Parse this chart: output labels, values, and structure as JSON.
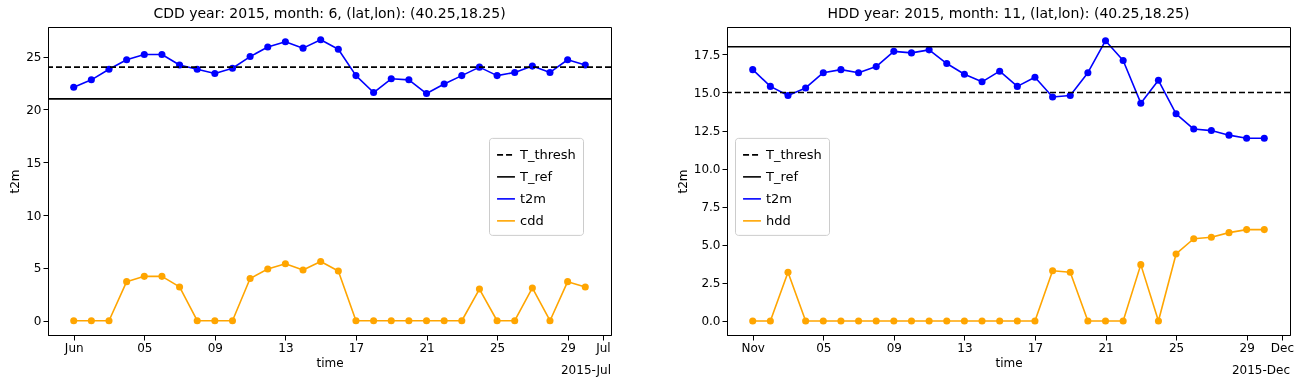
{
  "chart_data": [
    {
      "type": "line",
      "title": "CDD year: 2015, month: 6, (lat,lon): (40.25,18.25)",
      "xlabel": "time",
      "ylabel": "t2m",
      "x": [
        "2015-06-01",
        "2015-06-02",
        "2015-06-03",
        "2015-06-04",
        "2015-06-05",
        "2015-06-06",
        "2015-06-07",
        "2015-06-08",
        "2015-06-09",
        "2015-06-10",
        "2015-06-11",
        "2015-06-12",
        "2015-06-13",
        "2015-06-14",
        "2015-06-15",
        "2015-06-16",
        "2015-06-17",
        "2015-06-18",
        "2015-06-19",
        "2015-06-20",
        "2015-06-21",
        "2015-06-22",
        "2015-06-23",
        "2015-06-24",
        "2015-06-25",
        "2015-06-26",
        "2015-06-27",
        "2015-06-28",
        "2015-06-29",
        "2015-06-30"
      ],
      "series": [
        {
          "name": "t2m",
          "color": "#0000ff",
          "values": [
            22.1,
            22.8,
            23.8,
            24.7,
            25.2,
            25.2,
            24.2,
            23.8,
            23.4,
            23.9,
            25.0,
            25.9,
            26.4,
            25.8,
            26.6,
            25.7,
            23.2,
            21.6,
            22.9,
            22.8,
            21.5,
            22.4,
            23.2,
            24.0,
            23.2,
            23.5,
            24.1,
            23.5,
            24.7,
            24.2
          ]
        },
        {
          "name": "cdd",
          "color": "#ffa500",
          "values": [
            0,
            0,
            0,
            3.7,
            4.2,
            4.2,
            3.2,
            0,
            0,
            0,
            4.0,
            4.9,
            5.4,
            4.8,
            5.6,
            4.7,
            0,
            0,
            0,
            0,
            0,
            0,
            0,
            3.0,
            0,
            0,
            3.1,
            0,
            3.7,
            3.2
          ]
        }
      ],
      "ref_lines": [
        {
          "axis": "y",
          "value": 24,
          "label": "T_thresh",
          "color": "#000000",
          "line_style": "dashed"
        },
        {
          "axis": "y",
          "value": 21,
          "label": "T_ref",
          "color": "#000000",
          "line_style": "solid"
        }
      ],
      "xlim": [
        "2015-05-30T13:00",
        "2015-07-01T11:00"
      ],
      "xticks": [
        {
          "value": "2015-06-01",
          "label": "Jun"
        },
        {
          "value": "2015-06-05",
          "label": "05"
        },
        {
          "value": "2015-06-09",
          "label": "09"
        },
        {
          "value": "2015-06-13",
          "label": "13"
        },
        {
          "value": "2015-06-17",
          "label": "17"
        },
        {
          "value": "2015-06-21",
          "label": "21"
        },
        {
          "value": "2015-06-25",
          "label": "25"
        },
        {
          "value": "2015-06-29",
          "label": "29"
        },
        {
          "value": "2015-07-01",
          "label": "Jul"
        }
      ],
      "ylim": [
        -1.35,
        27.8
      ],
      "yticks": [
        0,
        5,
        10,
        15,
        20,
        25
      ],
      "marker": "circle",
      "legend": "right",
      "annotations": [
        "2015-Jul"
      ]
    },
    {
      "type": "line",
      "title": "HDD year: 2015, month: 11, (lat,lon): (40.25,18.25)",
      "xlabel": "time",
      "ylabel": "t2m",
      "x": [
        "2015-11-01",
        "2015-11-02",
        "2015-11-03",
        "2015-11-04",
        "2015-11-05",
        "2015-11-06",
        "2015-11-07",
        "2015-11-08",
        "2015-11-09",
        "2015-11-10",
        "2015-11-11",
        "2015-11-12",
        "2015-11-13",
        "2015-11-14",
        "2015-11-15",
        "2015-11-16",
        "2015-11-17",
        "2015-11-18",
        "2015-11-19",
        "2015-11-20",
        "2015-11-21",
        "2015-11-22",
        "2015-11-23",
        "2015-11-24",
        "2015-11-25",
        "2015-11-26",
        "2015-11-27",
        "2015-11-28",
        "2015-11-29",
        "2015-11-30"
      ],
      "series": [
        {
          "name": "t2m",
          "color": "#0000ff",
          "values": [
            16.5,
            15.4,
            14.8,
            15.3,
            16.3,
            16.5,
            16.3,
            16.7,
            17.7,
            17.6,
            17.8,
            16.9,
            16.2,
            15.7,
            16.4,
            15.4,
            16.0,
            14.7,
            14.8,
            16.3,
            18.4,
            17.1,
            14.3,
            15.8,
            13.6,
            12.6,
            12.5,
            12.2,
            12.0,
            12.0
          ]
        },
        {
          "name": "hdd",
          "color": "#ffa500",
          "values": [
            0,
            0,
            3.2,
            0,
            0,
            0,
            0,
            0,
            0,
            0,
            0,
            0,
            0,
            0,
            0,
            0,
            0,
            3.3,
            3.2,
            0,
            0,
            0,
            3.7,
            0,
            4.4,
            5.4,
            5.5,
            5.8,
            6.0,
            6.0
          ]
        }
      ],
      "ref_lines": [
        {
          "axis": "y",
          "value": 15,
          "label": "T_thresh",
          "color": "#000000",
          "line_style": "dashed"
        },
        {
          "axis": "y",
          "value": 18,
          "label": "T_ref",
          "color": "#000000",
          "line_style": "solid"
        }
      ],
      "xlim": [
        "2015-10-30T13:00",
        "2015-12-01T11:00"
      ],
      "xticks": [
        {
          "value": "2015-11-01",
          "label": "Nov"
        },
        {
          "value": "2015-11-05",
          "label": "05"
        },
        {
          "value": "2015-11-09",
          "label": "09"
        },
        {
          "value": "2015-11-13",
          "label": "13"
        },
        {
          "value": "2015-11-17",
          "label": "17"
        },
        {
          "value": "2015-11-21",
          "label": "21"
        },
        {
          "value": "2015-11-25",
          "label": "25"
        },
        {
          "value": "2015-11-29",
          "label": "29"
        },
        {
          "value": "2015-12-01",
          "label": "Dec"
        }
      ],
      "ylim": [
        -0.92,
        19.3
      ],
      "yticks": [
        {
          "value": 0,
          "label": "0.0"
        },
        {
          "value": 2.5,
          "label": "2.5"
        },
        {
          "value": 5,
          "label": "5.0"
        },
        {
          "value": 7.5,
          "label": "7.5"
        },
        {
          "value": 10,
          "label": "10.0"
        },
        {
          "value": 12.5,
          "label": "12.5"
        },
        {
          "value": 15,
          "label": "15.0"
        },
        {
          "value": 17.5,
          "label": "17.5"
        }
      ],
      "marker": "circle",
      "legend": "left",
      "annotations": [
        "2015-Dec"
      ]
    }
  ]
}
